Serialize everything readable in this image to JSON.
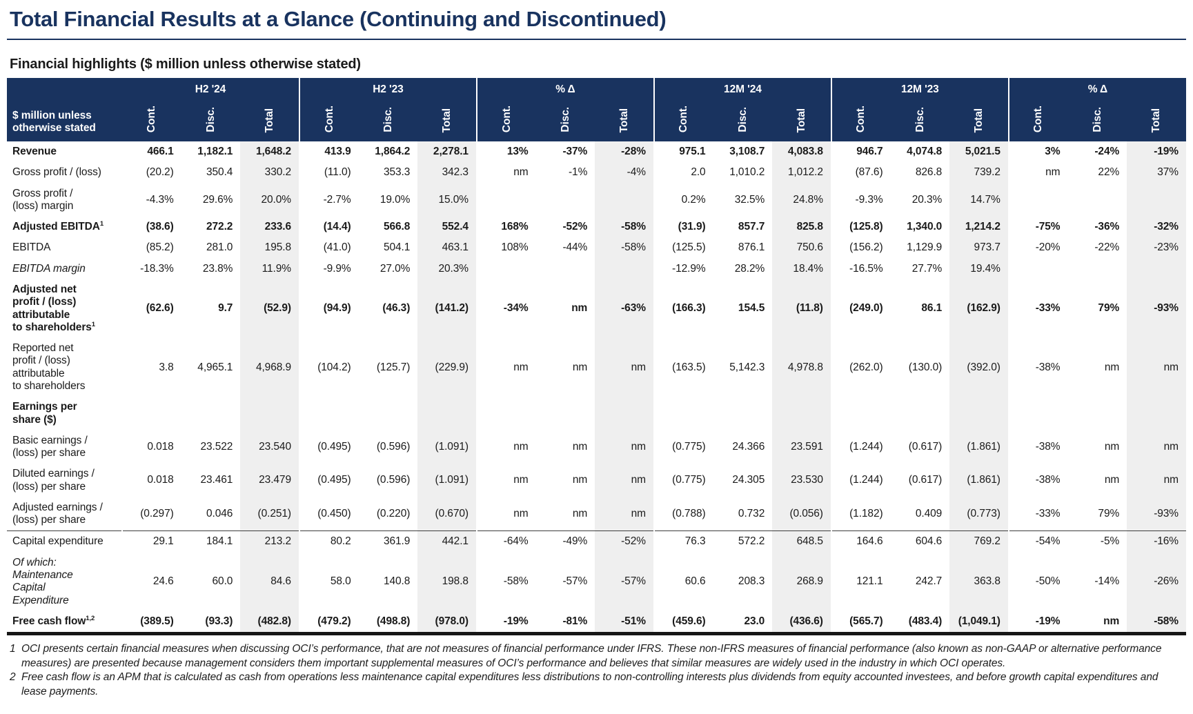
{
  "colors": {
    "navy": "#19335F",
    "band_gray": "#EFEFEF"
  },
  "page_title": "Total Financial Results at a Glance (Continuing and Discontinued)",
  "subtitle": "Financial highlights ($ million unless otherwise stated)",
  "table": {
    "corner_label": "$ million unless\notherwise stated",
    "groups": [
      {
        "label": "H2 '24"
      },
      {
        "label": "H2 '23"
      },
      {
        "label": "% Δ"
      },
      {
        "label": "12M '24"
      },
      {
        "label": "12M '23"
      },
      {
        "label": "% Δ"
      }
    ],
    "sub_columns": [
      "Cont.",
      "Disc.",
      "Total"
    ],
    "rows": [
      {
        "label": "Revenue",
        "sup": "",
        "style": "bold",
        "rule_top": false,
        "values": [
          "466.1",
          "1,182.1",
          "1,648.2",
          "413.9",
          "1,864.2",
          "2,278.1",
          "13%",
          "-37%",
          "-28%",
          "975.1",
          "3,108.7",
          "4,083.8",
          "946.7",
          "4,074.8",
          "5,021.5",
          "3%",
          "-24%",
          "-19%"
        ]
      },
      {
        "label": "Gross profit / (loss)",
        "sup": "",
        "style": "normal",
        "rule_top": false,
        "values": [
          "(20.2)",
          "350.4",
          "330.2",
          "(11.0)",
          "353.3",
          "342.3",
          "nm",
          "-1%",
          "-4%",
          "2.0",
          "1,010.2",
          "1,012.2",
          "(87.6)",
          "826.8",
          "739.2",
          "nm",
          "22%",
          "37%"
        ]
      },
      {
        "label": "Gross profit /\n(loss) margin",
        "sup": "",
        "style": "normal",
        "rule_top": false,
        "values": [
          "-4.3%",
          "29.6%",
          "20.0%",
          "-2.7%",
          "19.0%",
          "15.0%",
          "",
          "",
          "",
          "0.2%",
          "32.5%",
          "24.8%",
          "-9.3%",
          "20.3%",
          "14.7%",
          "",
          "",
          ""
        ]
      },
      {
        "label": "Adjusted EBITDA",
        "sup": "1",
        "style": "bold",
        "rule_top": false,
        "values": [
          "(38.6)",
          "272.2",
          "233.6",
          "(14.4)",
          "566.8",
          "552.4",
          "168%",
          "-52%",
          "-58%",
          "(31.9)",
          "857.7",
          "825.8",
          "(125.8)",
          "1,340.0",
          "1,214.2",
          "-75%",
          "-36%",
          "-32%"
        ]
      },
      {
        "label": "EBITDA",
        "sup": "",
        "style": "normal",
        "rule_top": false,
        "values": [
          "(85.2)",
          "281.0",
          "195.8",
          "(41.0)",
          "504.1",
          "463.1",
          "108%",
          "-44%",
          "-58%",
          "(125.5)",
          "876.1",
          "750.6",
          "(156.2)",
          "1,129.9",
          "973.7",
          "-20%",
          "-22%",
          "-23%"
        ]
      },
      {
        "label": "EBITDA margin",
        "sup": "",
        "style": "italic",
        "rule_top": false,
        "values": [
          "-18.3%",
          "23.8%",
          "11.9%",
          "-9.9%",
          "27.0%",
          "20.3%",
          "",
          "",
          "",
          "-12.9%",
          "28.2%",
          "18.4%",
          "-16.5%",
          "27.7%",
          "19.4%",
          "",
          "",
          ""
        ]
      },
      {
        "label": "Adjusted net\nprofit / (loss)\nattributable\nto shareholders",
        "sup": "1",
        "style": "bold",
        "rule_top": false,
        "values": [
          "(62.6)",
          "9.7",
          "(52.9)",
          "(94.9)",
          "(46.3)",
          "(141.2)",
          "-34%",
          "nm",
          "-63%",
          "(166.3)",
          "154.5",
          "(11.8)",
          "(249.0)",
          "86.1",
          "(162.9)",
          "-33%",
          "79%",
          "-93%"
        ]
      },
      {
        "label": "Reported net\nprofit / (loss)\nattributable\nto shareholders",
        "sup": "",
        "style": "normal",
        "rule_top": false,
        "values": [
          "3.8",
          "4,965.1",
          "4,968.9",
          "(104.2)",
          "(125.7)",
          "(229.9)",
          "nm",
          "nm",
          "nm",
          "(163.5)",
          "5,142.3",
          "4,978.8",
          "(262.0)",
          "(130.0)",
          "(392.0)",
          "-38%",
          "nm",
          "nm"
        ]
      },
      {
        "label": "Earnings per\nshare ($)",
        "sup": "",
        "style": "section",
        "rule_top": false,
        "values": [
          "",
          "",
          "",
          "",
          "",
          "",
          "",
          "",
          "",
          "",
          "",
          "",
          "",
          "",
          "",
          "",
          "",
          ""
        ]
      },
      {
        "label": "Basic earnings /\n(loss) per share",
        "sup": "",
        "style": "normal",
        "rule_top": false,
        "values": [
          "0.018",
          "23.522",
          "23.540",
          "(0.495)",
          "(0.596)",
          "(1.091)",
          "nm",
          "nm",
          "nm",
          "(0.775)",
          "24.366",
          "23.591",
          "(1.244)",
          "(0.617)",
          "(1.861)",
          "-38%",
          "nm",
          "nm"
        ]
      },
      {
        "label": "Diluted earnings /\n(loss) per share",
        "sup": "",
        "style": "normal",
        "rule_top": false,
        "values": [
          "0.018",
          "23.461",
          "23.479",
          "(0.495)",
          "(0.596)",
          "(1.091)",
          "nm",
          "nm",
          "nm",
          "(0.775)",
          "24.305",
          "23.530",
          "(1.244)",
          "(0.617)",
          "(1.861)",
          "-38%",
          "nm",
          "nm"
        ]
      },
      {
        "label": "Adjusted earnings /\n(loss) per share",
        "sup": "",
        "style": "normal",
        "rule_top": false,
        "values": [
          "(0.297)",
          "0.046",
          "(0.251)",
          "(0.450)",
          "(0.220)",
          "(0.670)",
          "nm",
          "nm",
          "nm",
          "(0.788)",
          "0.732",
          "(0.056)",
          "(1.182)",
          "0.409",
          "(0.773)",
          "-33%",
          "79%",
          "-93%"
        ]
      },
      {
        "label": "Capital expenditure",
        "sup": "",
        "style": "normal",
        "rule_top": true,
        "values": [
          "29.1",
          "184.1",
          "213.2",
          "80.2",
          "361.9",
          "442.1",
          "-64%",
          "-49%",
          "-52%",
          "76.3",
          "572.2",
          "648.5",
          "164.6",
          "604.6",
          "769.2",
          "-54%",
          "-5%",
          "-16%"
        ]
      },
      {
        "label": "Of which:\nMaintenance\nCapital\nExpenditure",
        "sup": "",
        "style": "italic",
        "rule_top": false,
        "values": [
          "24.6",
          "60.0",
          "84.6",
          "58.0",
          "140.8",
          "198.8",
          "-58%",
          "-57%",
          "-57%",
          "60.6",
          "208.3",
          "268.9",
          "121.1",
          "242.7",
          "363.8",
          "-50%",
          "-14%",
          "-26%"
        ]
      },
      {
        "label": "Free cash flow",
        "sup": "1,2",
        "style": "bold",
        "rule_top": false,
        "values": [
          "(389.5)",
          "(93.3)",
          "(482.8)",
          "(479.2)",
          "(498.8)",
          "(978.0)",
          "-19%",
          "-81%",
          "-51%",
          "(459.6)",
          "23.0",
          "(436.6)",
          "(565.7)",
          "(483.4)",
          "(1,049.1)",
          "-19%",
          "nm",
          "-58%"
        ]
      }
    ]
  },
  "footnotes": [
    {
      "marker": "1",
      "text": "OCI presents certain financial measures when discussing OCI’s performance, that are not measures of financial performance under IFRS. These non-IFRS measures of financial performance (also known as non-GAAP or alternative performance measures) are presented because management considers them important supplemental measures of OCI’s performance and believes that similar measures are widely used in the industry in which OCI operates."
    },
    {
      "marker": "2",
      "text": "Free cash flow is an APM that is calculated as cash from operations less maintenance capital expenditures less distributions to non-controlling interests plus dividends from equity accounted investees, and before growth capital expenditures and lease payments."
    }
  ]
}
